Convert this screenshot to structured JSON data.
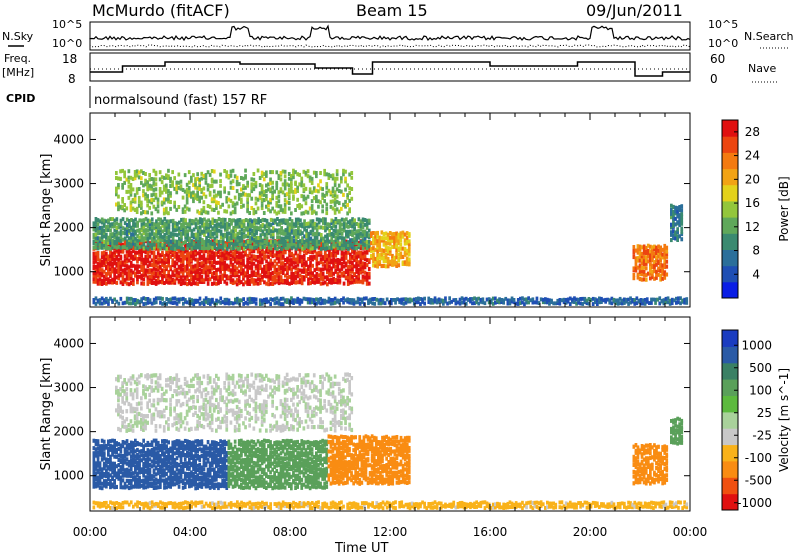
{
  "header": {
    "station": "McMurdo (fitACF)",
    "beam": "Beam 15",
    "date": "09/Jun/2011"
  },
  "summary_panel": {
    "left_label_top": "N.Sky",
    "left_scale_top": "10^5",
    "left_scale_bottom": "10^0",
    "right_label_top": "N.Search",
    "right_scale_top": "10^5",
    "right_scale_bottom": "10^0",
    "freq_label_1": "Freq.",
    "freq_label_2": "[MHz]",
    "freq_tick_top": "18",
    "freq_tick_bottom": "8",
    "nave_label": "Nave",
    "nave_tick_top": "60",
    "nave_tick_bottom": "0",
    "cpid_label": "CPID",
    "cpid_value": "normalsound (fast) 157 RF"
  },
  "time_axis": {
    "label": "Time UT",
    "ticks": [
      "00:00",
      "04:00",
      "08:00",
      "12:00",
      "16:00",
      "20:00",
      "00:00"
    ]
  },
  "colors": {
    "power": [
      "#0a1ee6",
      "#1f4fb4",
      "#2b6f9a",
      "#3a8a70",
      "#5fa85a",
      "#93c63b",
      "#e4d21b",
      "#f2a314",
      "#f47a10",
      "#ec4510",
      "#e01010"
    ],
    "velocity": [
      "#e01010",
      "#f05010",
      "#f98c12",
      "#f9b21a",
      "#c8c8c8",
      "#a9d29b",
      "#5cba3e",
      "#5aa05a",
      "#3a8064",
      "#2a5aa6",
      "#1a3cc0"
    ]
  },
  "chart_data": [
    {
      "type": "heatmap",
      "name": "power",
      "ylabel": "Slant Range [km]",
      "xlabel": "",
      "y_ticks": [
        "1000",
        "2000",
        "3000",
        "4000"
      ],
      "ylim": [
        200,
        4600
      ],
      "xlim_hours": [
        0,
        24
      ],
      "colorbar": {
        "label": "Power [dB]",
        "ticks": [
          "4",
          "8",
          "12",
          "16",
          "20",
          "24",
          "28"
        ],
        "range": [
          0,
          30
        ]
      },
      "regions": [
        {
          "t0": 0.1,
          "t1": 6.0,
          "r0": 700,
          "r1": 1700,
          "value": 28
        },
        {
          "t0": 6.0,
          "t1": 11.2,
          "r0": 700,
          "r1": 1700,
          "value": 28
        },
        {
          "t0": 0.1,
          "t1": 11.2,
          "r0": 1500,
          "r1": 2200,
          "value": 11
        },
        {
          "t0": 1.0,
          "t1": 10.5,
          "r0": 2300,
          "r1": 3300,
          "value": 14
        },
        {
          "t0": 11.2,
          "t1": 12.8,
          "r0": 1100,
          "r1": 1900,
          "value": 20
        },
        {
          "t0": 21.7,
          "t1": 23.1,
          "r0": 800,
          "r1": 1600,
          "value": 24
        },
        {
          "t0": 23.2,
          "t1": 23.7,
          "r0": 1700,
          "r1": 2500,
          "value": 8
        },
        {
          "t0": 0.1,
          "t1": 23.9,
          "r0": 250,
          "r1": 400,
          "value": 6
        }
      ]
    },
    {
      "type": "heatmap",
      "name": "velocity",
      "ylabel": "Slant Range [km]",
      "xlabel": "Time UT",
      "y_ticks": [
        "1000",
        "2000",
        "3000",
        "4000"
      ],
      "ylim": [
        200,
        4600
      ],
      "xlim_hours": [
        0,
        24
      ],
      "colorbar": {
        "label": "Velocity [m s^-1]",
        "ticks": [
          "1000",
          "500",
          "100",
          "25",
          "-25",
          "-100",
          "-500",
          "-1000"
        ],
        "range": [
          -1000,
          1000
        ]
      },
      "regions": [
        {
          "t0": 0.1,
          "t1": 5.5,
          "r0": 700,
          "r1": 1800,
          "value": 700
        },
        {
          "t0": 5.5,
          "t1": 9.5,
          "r0": 700,
          "r1": 1800,
          "value": 150
        },
        {
          "t0": 9.5,
          "t1": 12.8,
          "r0": 800,
          "r1": 1900,
          "value": -150
        },
        {
          "t0": 1.0,
          "t1": 10.5,
          "r0": 2000,
          "r1": 3300,
          "value": 20
        },
        {
          "t0": 21.7,
          "t1": 23.1,
          "r0": 800,
          "r1": 1700,
          "value": -150
        },
        {
          "t0": 23.2,
          "t1": 23.7,
          "r0": 1700,
          "r1": 2300,
          "value": 150
        },
        {
          "t0": 0.1,
          "t1": 23.9,
          "r0": 250,
          "r1": 400,
          "value": -60
        }
      ]
    }
  ]
}
